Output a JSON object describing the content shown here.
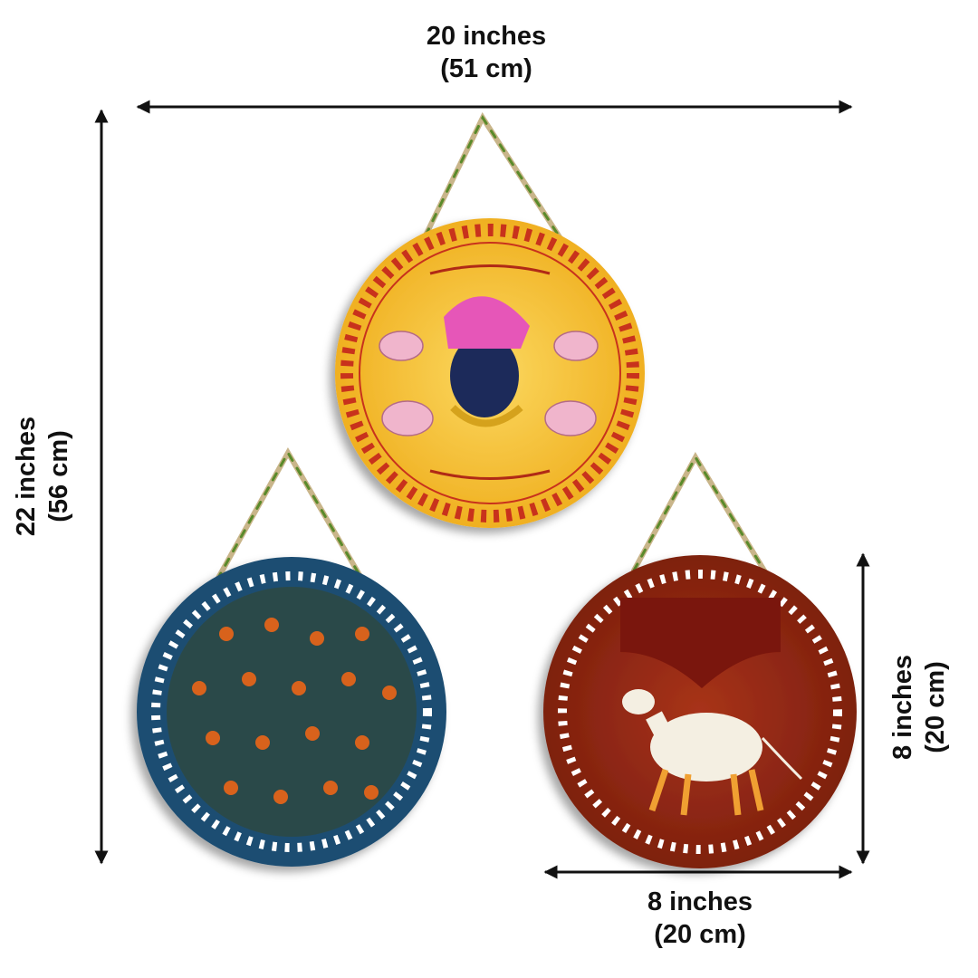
{
  "dimensions": {
    "overall_width": {
      "inches": "20 inches",
      "cm": "(51 cm)"
    },
    "overall_height": {
      "inches": "22 inches",
      "cm": "(56 cm)"
    },
    "plaque_height": {
      "inches": "8 inches",
      "cm": "(20 cm)"
    },
    "plaque_width": {
      "inches": "8 inches",
      "cm": "(20 cm)"
    }
  },
  "plaques": [
    {
      "theme": "shrinathji-yellow",
      "color": "#f5c132",
      "border": "#c8321e"
    },
    {
      "theme": "floral-blue",
      "color": "#1f4e72",
      "border": "#ffffff"
    },
    {
      "theme": "pichwai-cow-red",
      "color": "#9a2a14",
      "border": "#ffffff"
    }
  ],
  "colors": {
    "arrow": "#111111",
    "vine": "#5a8a2a",
    "rope": "#c9b58a"
  }
}
